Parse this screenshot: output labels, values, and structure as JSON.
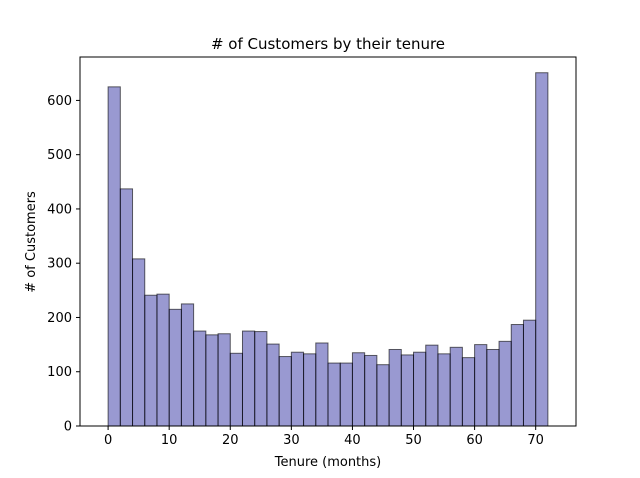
{
  "chart_data": {
    "type": "bar",
    "title": "# of Customers by their tenure",
    "xlabel": "Tenure (months)",
    "ylabel": "# of Customers",
    "x_range": [
      -4.6,
      76.6
    ],
    "ylim": [
      0,
      680
    ],
    "x_ticks": [
      0,
      10,
      20,
      30,
      40,
      50,
      60,
      70
    ],
    "y_ticks": [
      0,
      100,
      200,
      300,
      400,
      500,
      600
    ],
    "bin_start": 0,
    "bin_width": 2,
    "values": [
      625,
      437,
      308,
      241,
      243,
      215,
      225,
      175,
      168,
      170,
      134,
      175,
      174,
      151,
      128,
      136,
      133,
      153,
      116,
      116,
      135,
      130,
      113,
      141,
      131,
      136,
      149,
      133,
      145,
      126,
      150,
      141,
      156,
      187,
      195,
      651
    ],
    "bar_color": "#00008B",
    "bar_alpha": 0.4,
    "edge_color": "#000000",
    "grid": false,
    "legend": "none"
  }
}
